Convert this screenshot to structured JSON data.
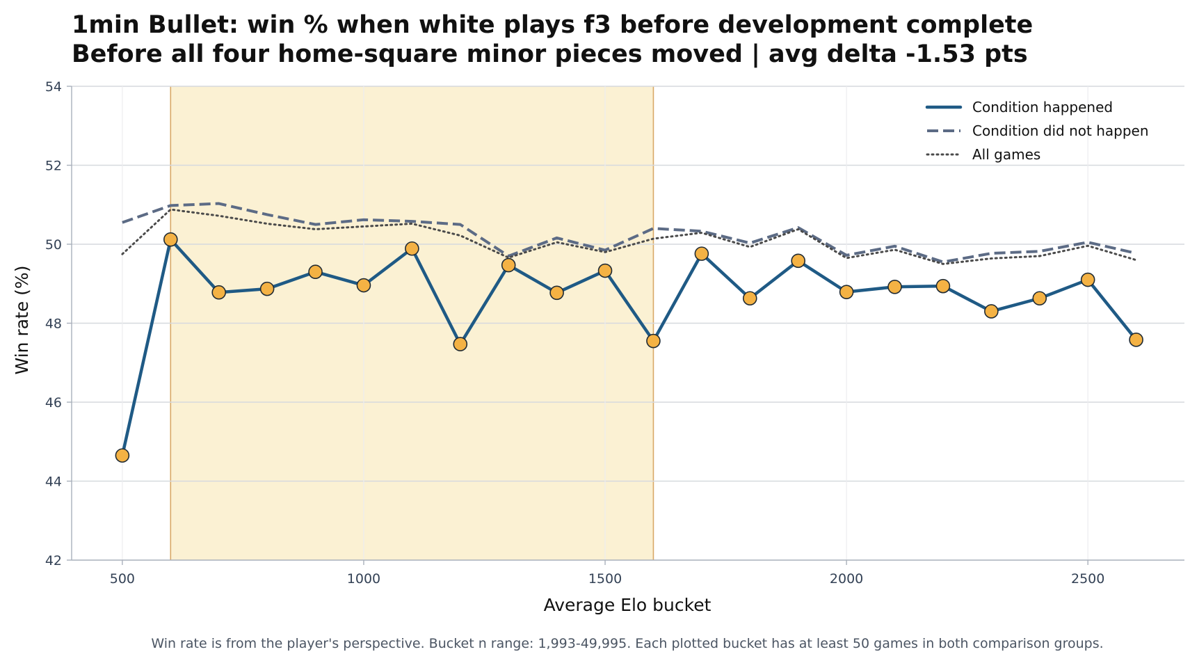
{
  "chart_data": {
    "type": "line",
    "title": "1min Bullet: win % when white plays f3 before development complete",
    "subtitle": "Before all four home-square minor pieces moved | avg delta -1.53 pts",
    "xlabel": "Average Elo bucket",
    "ylabel": "Win rate (%)",
    "xlim": [
      395,
      2700
    ],
    "ylim": [
      42,
      54
    ],
    "xticks": [
      500,
      1000,
      1500,
      2000,
      2500
    ],
    "yticks": [
      42,
      44,
      46,
      48,
      50,
      52,
      54
    ],
    "grid": true,
    "legend_position": "top-right",
    "highlight_band": {
      "x_start": 600,
      "x_end": 1600,
      "color": "#fbf1d3",
      "edge_color": "#d9a866"
    },
    "x": [
      500,
      600,
      700,
      800,
      900,
      1000,
      1100,
      1200,
      1300,
      1400,
      1500,
      1600,
      1700,
      1800,
      1900,
      2000,
      2100,
      2200,
      2300,
      2400,
      2500,
      2600
    ],
    "series": [
      {
        "name": "Condition happened",
        "style": "solid",
        "color": "#1f5a85",
        "marker_color": "#f4b244",
        "values": [
          44.65,
          50.12,
          48.78,
          48.87,
          49.3,
          48.96,
          49.89,
          47.47,
          49.47,
          48.77,
          49.33,
          47.55,
          49.76,
          48.63,
          49.58,
          48.79,
          48.92,
          48.94,
          48.3,
          48.63,
          49.1,
          47.58
        ]
      },
      {
        "name": "Condition did not happen",
        "style": "dashed",
        "color": "#5c6b85",
        "values": [
          50.55,
          50.98,
          51.03,
          50.75,
          50.5,
          50.62,
          50.58,
          50.5,
          49.7,
          50.16,
          49.85,
          50.4,
          50.33,
          50.03,
          50.42,
          49.72,
          49.95,
          49.55,
          49.77,
          49.82,
          50.05,
          49.77
        ]
      },
      {
        "name": "All games",
        "style": "dotted",
        "color": "#4a4a4a",
        "values": [
          49.75,
          50.88,
          50.72,
          50.52,
          50.38,
          50.45,
          50.52,
          50.22,
          49.66,
          50.05,
          49.8,
          50.14,
          50.29,
          49.93,
          50.38,
          49.65,
          49.86,
          49.5,
          49.64,
          49.7,
          49.96,
          49.6
        ]
      }
    ],
    "footnote": "Win rate is from the player's perspective. Bucket n range: 1,993-49,995. Each plotted bucket has at least 50 games in both comparison groups."
  }
}
